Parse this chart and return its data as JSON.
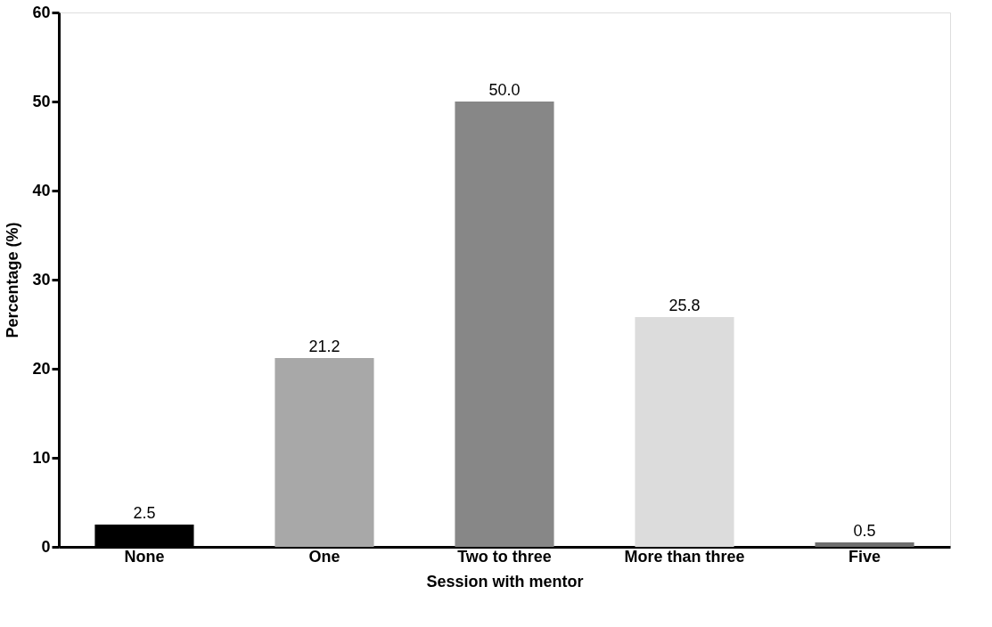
{
  "chart_data": {
    "type": "bar",
    "xlabel": "Session with mentor",
    "ylabel": "Percentage (%)",
    "categories": [
      "None",
      "One",
      "Two to three",
      "More than three",
      "Five"
    ],
    "values": [
      2.5,
      21.2,
      50.0,
      25.8,
      0.5
    ],
    "colors": [
      "#000000",
      "#a8a8a8",
      "#878787",
      "#dcdcdc",
      "#6e6e6e"
    ],
    "value_labels": [
      "2.5",
      "21.2",
      "50.0",
      "25.8",
      "0.5"
    ],
    "ylim": [
      0,
      60
    ],
    "yticks": [
      0,
      10,
      20,
      30,
      40,
      50,
      60
    ],
    "grid": false,
    "legend": false
  }
}
